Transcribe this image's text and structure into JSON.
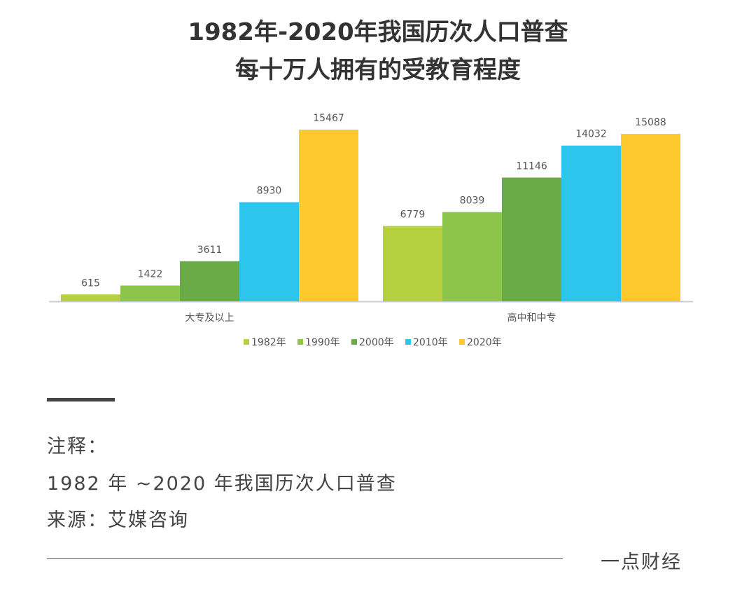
{
  "chart_data": {
    "type": "bar",
    "title": "1982年-2020年我国历次人口普查",
    "subtitle": "每十万人拥有的受教育程度",
    "categories": [
      "大专及以上",
      "高中和中专"
    ],
    "series": [
      {
        "name": "1982年",
        "color": "#b5cf3e",
        "values": [
          615,
          6779
        ]
      },
      {
        "name": "1990年",
        "color": "#8dc54b",
        "values": [
          1422,
          8039
        ]
      },
      {
        "name": "2000年",
        "color": "#6aab47",
        "values": [
          3611,
          11146
        ]
      },
      {
        "name": "2010年",
        "color": "#2ec5ec",
        "values": [
          8930,
          14032
        ]
      },
      {
        "name": "2020年",
        "color": "#fdc82d",
        "values": [
          15467,
          15088
        ]
      }
    ],
    "ylim": [
      0,
      16000
    ],
    "grid": false,
    "legend": "bottom"
  },
  "notes": {
    "label": "注释：",
    "line1": "1982 年 ~2020 年我国历次人口普查",
    "line2": "来源：艾媒咨询"
  },
  "brand": "一点财经"
}
